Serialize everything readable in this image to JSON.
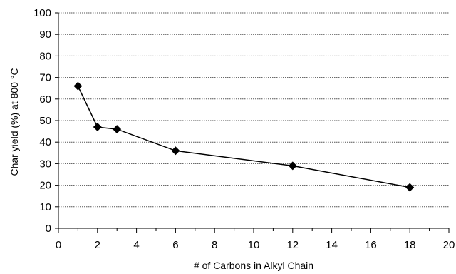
{
  "chart_data": {
    "type": "line",
    "xlabel": "# of Carbons in Alkyl Chain",
    "ylabel": "Char yield (%) at 800 °C",
    "xlim": [
      0,
      20
    ],
    "ylim": [
      0,
      100
    ],
    "x_ticks": [
      0,
      2,
      4,
      6,
      8,
      10,
      12,
      14,
      16,
      18,
      20
    ],
    "y_ticks": [
      0,
      10,
      20,
      30,
      40,
      50,
      60,
      70,
      80,
      90,
      100
    ],
    "grid": "horizontal dotted",
    "marker": "diamond",
    "series": [
      {
        "x": [
          1,
          2,
          3,
          6,
          12,
          18
        ],
        "y": [
          66,
          47,
          46,
          36,
          29,
          19
        ]
      }
    ]
  }
}
